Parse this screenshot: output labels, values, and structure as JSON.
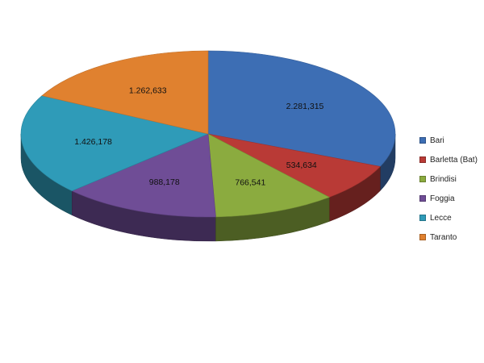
{
  "chart_data": {
    "type": "pie",
    "style": "3d",
    "legend_position": "right",
    "categories": [
      "Bari",
      "Barletta (Bat)",
      "Brindisi",
      "Foggia",
      "Lecce",
      "Taranto"
    ],
    "values": [
      2281315,
      534634,
      766541,
      988178,
      1426178,
      1262633
    ],
    "value_labels": [
      "2.281,315",
      "534,634",
      "766,541",
      "988,178",
      "1.426,178",
      "1.262,633"
    ],
    "colors": [
      "#3d6eb4",
      "#b93a36",
      "#8bab3f",
      "#6f4d96",
      "#2f9bb8",
      "#e0812f"
    ],
    "legend": [
      {
        "label": "Bari",
        "color": "#3d6eb4"
      },
      {
        "label": "Barletta (Bat)",
        "color": "#b93a36"
      },
      {
        "label": "Brindisi",
        "color": "#8bab3f"
      },
      {
        "label": "Foggia",
        "color": "#6f4d96"
      },
      {
        "label": "Lecce",
        "color": "#2f9bb8"
      },
      {
        "label": "Taranto",
        "color": "#e0812f"
      }
    ]
  }
}
